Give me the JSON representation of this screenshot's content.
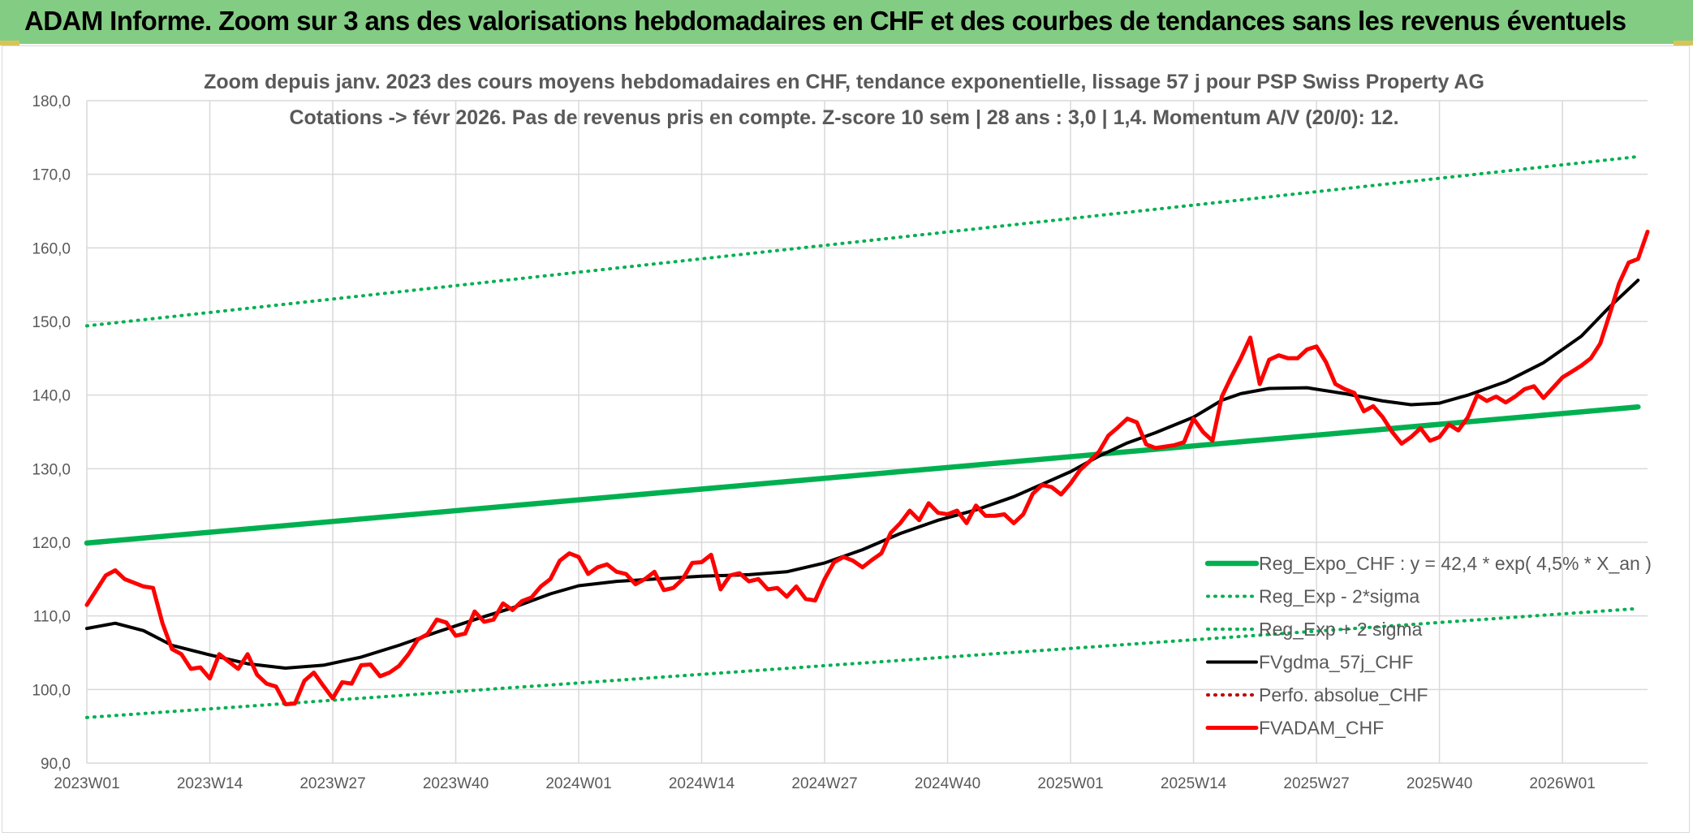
{
  "header": {
    "title": "ADAM Informe. Zoom sur 3 ans des valorisations hebdomadaires en CHF et des courbes de tendances sans les revenus éventuels",
    "background": "#83cc83"
  },
  "chart_data": {
    "type": "line",
    "title_line1": "Zoom depuis janv. 2023 des cours moyens hebdomadaires en CHF, tendance exponentielle, lissage 57 j pour PSP Swiss Property AG",
    "title_line2": "Cotations -> févr 2026. Pas de revenus pris en compte. Z-score 10 sem | 28 ans : 3,0 | 1,4. Momentum A/V (20/0): 12.",
    "ylim": [
      90,
      180
    ],
    "yticks": [
      "90,0",
      "100,0",
      "110,0",
      "120,0",
      "130,0",
      "140,0",
      "150,0",
      "160,0",
      "170,0",
      "180,0"
    ],
    "xticks": [
      {
        "label": "2023W01",
        "index": 0
      },
      {
        "label": "2023W14",
        "index": 13
      },
      {
        "label": "2023W27",
        "index": 26
      },
      {
        "label": "2023W40",
        "index": 39
      },
      {
        "label": "2024W01",
        "index": 52
      },
      {
        "label": "2024W14",
        "index": 65
      },
      {
        "label": "2024W27",
        "index": 78
      },
      {
        "label": "2024W40",
        "index": 91
      },
      {
        "label": "2025W01",
        "index": 104
      },
      {
        "label": "2025W14",
        "index": 117
      },
      {
        "label": "2025W27",
        "index": 130
      },
      {
        "label": "2025W40",
        "index": 143
      },
      {
        "label": "2026W01",
        "index": 156
      }
    ],
    "n_points": 165,
    "grid": true,
    "legend_position": "bottom-right",
    "series": [
      {
        "name": "Reg_Expo_CHF : y = 42,4 * exp( 4,5% *  X_an )",
        "color": "#00b050",
        "style": "solid-thick",
        "points": [
          [
            0,
            119.9
          ],
          [
            164,
            138.4
          ]
        ]
      },
      {
        "name": "Reg_Exp - 2*sigma",
        "color": "#00b050",
        "style": "dotted",
        "points": [
          [
            0,
            96.2
          ],
          [
            164,
            111.0
          ]
        ]
      },
      {
        "name": "Reg_Exp + 2 sigma",
        "color": "#00b050",
        "style": "dotted",
        "points": [
          [
            0,
            149.4
          ],
          [
            164,
            172.4
          ]
        ]
      },
      {
        "name": "FVgdma_57j_CHF",
        "color": "#000000",
        "style": "solid",
        "points": [
          [
            0,
            108.3
          ],
          [
            3,
            109.0
          ],
          [
            6,
            108.0
          ],
          [
            9,
            106.0
          ],
          [
            13,
            104.7
          ],
          [
            17,
            103.5
          ],
          [
            21,
            102.9
          ],
          [
            25,
            103.3
          ],
          [
            29,
            104.4
          ],
          [
            33,
            106.0
          ],
          [
            37,
            107.8
          ],
          [
            41,
            109.5
          ],
          [
            45,
            111.1
          ],
          [
            49,
            113.0
          ],
          [
            52,
            114.1
          ],
          [
            56,
            114.7
          ],
          [
            60,
            115.0
          ],
          [
            65,
            115.4
          ],
          [
            70,
            115.6
          ],
          [
            74,
            116.0
          ],
          [
            78,
            117.2
          ],
          [
            82,
            119.0
          ],
          [
            86,
            121.2
          ],
          [
            90,
            123.0
          ],
          [
            94,
            124.4
          ],
          [
            98,
            126.2
          ],
          [
            101,
            127.9
          ],
          [
            104,
            129.6
          ],
          [
            107,
            131.7
          ],
          [
            110,
            133.5
          ],
          [
            113,
            134.9
          ],
          [
            117,
            137.0
          ],
          [
            120,
            139.3
          ],
          [
            122,
            140.2
          ],
          [
            125,
            140.9
          ],
          [
            129,
            141.0
          ],
          [
            133,
            140.2
          ],
          [
            137,
            139.2
          ],
          [
            140,
            138.7
          ],
          [
            143,
            138.9
          ],
          [
            146,
            140.0
          ],
          [
            150,
            141.8
          ],
          [
            154,
            144.4
          ],
          [
            158,
            148.0
          ],
          [
            161,
            152.0
          ],
          [
            164,
            155.6
          ]
        ]
      },
      {
        "name": "Perfo. absolue_CHF",
        "color": "#c00000",
        "style": "dotted",
        "points": []
      },
      {
        "name": "FVADAM_CHF",
        "color": "#ff0000",
        "style": "solid-thick",
        "points": [
          [
            0,
            111.5
          ],
          [
            2,
            115.5
          ],
          [
            3,
            116.2
          ],
          [
            4,
            115.0
          ],
          [
            6,
            114.0
          ],
          [
            7,
            113.8
          ],
          [
            8,
            109.0
          ],
          [
            9,
            105.5
          ],
          [
            10,
            104.8
          ],
          [
            11,
            102.8
          ],
          [
            12,
            103.0
          ],
          [
            13,
            101.5
          ],
          [
            14,
            104.8
          ],
          [
            15,
            103.8
          ],
          [
            16,
            102.8
          ],
          [
            17,
            104.8
          ],
          [
            18,
            102.0
          ],
          [
            19,
            100.8
          ],
          [
            20,
            100.4
          ],
          [
            21,
            98.0
          ],
          [
            22,
            98.1
          ],
          [
            23,
            101.2
          ],
          [
            24,
            102.3
          ],
          [
            25,
            100.5
          ],
          [
            26,
            98.8
          ],
          [
            27,
            101.0
          ],
          [
            28,
            100.8
          ],
          [
            29,
            103.3
          ],
          [
            30,
            103.4
          ],
          [
            31,
            101.8
          ],
          [
            32,
            102.3
          ],
          [
            33,
            103.2
          ],
          [
            34,
            104.8
          ],
          [
            35,
            106.8
          ],
          [
            36,
            107.5
          ],
          [
            37,
            109.5
          ],
          [
            38,
            109.1
          ],
          [
            39,
            107.3
          ],
          [
            40,
            107.6
          ],
          [
            41,
            110.6
          ],
          [
            42,
            109.2
          ],
          [
            43,
            109.5
          ],
          [
            44,
            111.7
          ],
          [
            45,
            110.8
          ],
          [
            46,
            112.0
          ],
          [
            47,
            112.5
          ],
          [
            48,
            114.0
          ],
          [
            49,
            115.0
          ],
          [
            50,
            117.5
          ],
          [
            51,
            118.5
          ],
          [
            52,
            118.0
          ],
          [
            53,
            115.7
          ],
          [
            54,
            116.6
          ],
          [
            55,
            117.0
          ],
          [
            56,
            116.0
          ],
          [
            57,
            115.7
          ],
          [
            58,
            114.3
          ],
          [
            59,
            115.0
          ],
          [
            60,
            116.0
          ],
          [
            61,
            113.5
          ],
          [
            62,
            113.8
          ],
          [
            63,
            115.0
          ],
          [
            64,
            117.2
          ],
          [
            65,
            117.3
          ],
          [
            66,
            118.3
          ],
          [
            67,
            113.6
          ],
          [
            68,
            115.5
          ],
          [
            69,
            115.8
          ],
          [
            70,
            114.7
          ],
          [
            71,
            115.0
          ],
          [
            72,
            113.6
          ],
          [
            73,
            113.8
          ],
          [
            74,
            112.6
          ],
          [
            75,
            114.0
          ],
          [
            76,
            112.3
          ],
          [
            77,
            112.1
          ],
          [
            78,
            115.0
          ],
          [
            79,
            117.3
          ],
          [
            80,
            118.0
          ],
          [
            81,
            117.5
          ],
          [
            82,
            116.6
          ],
          [
            83,
            117.6
          ],
          [
            84,
            118.5
          ],
          [
            85,
            121.3
          ],
          [
            86,
            122.6
          ],
          [
            87,
            124.3
          ],
          [
            88,
            123.0
          ],
          [
            89,
            125.3
          ],
          [
            90,
            124.0
          ],
          [
            91,
            123.8
          ],
          [
            92,
            124.3
          ],
          [
            93,
            122.6
          ],
          [
            94,
            125.0
          ],
          [
            95,
            123.6
          ],
          [
            96,
            123.6
          ],
          [
            97,
            123.8
          ],
          [
            98,
            122.6
          ],
          [
            99,
            123.8
          ],
          [
            100,
            126.6
          ],
          [
            101,
            127.8
          ],
          [
            102,
            127.5
          ],
          [
            103,
            126.5
          ],
          [
            104,
            128.0
          ],
          [
            105,
            129.8
          ],
          [
            106,
            131.0
          ],
          [
            107,
            132.3
          ],
          [
            108,
            134.5
          ],
          [
            109,
            135.6
          ],
          [
            110,
            136.8
          ],
          [
            111,
            136.3
          ],
          [
            112,
            133.3
          ],
          [
            113,
            132.8
          ],
          [
            114,
            133.0
          ],
          [
            115,
            133.2
          ],
          [
            116,
            133.6
          ],
          [
            117,
            136.8
          ],
          [
            118,
            135.0
          ],
          [
            119,
            133.8
          ],
          [
            120,
            139.8
          ],
          [
            121,
            142.5
          ],
          [
            122,
            145.0
          ],
          [
            123,
            147.8
          ],
          [
            124,
            141.5
          ],
          [
            125,
            144.8
          ],
          [
            126,
            145.4
          ],
          [
            127,
            145.0
          ],
          [
            128,
            145.0
          ],
          [
            129,
            146.2
          ],
          [
            130,
            146.6
          ],
          [
            131,
            144.5
          ],
          [
            132,
            141.5
          ],
          [
            133,
            140.8
          ],
          [
            134,
            140.3
          ],
          [
            135,
            137.8
          ],
          [
            136,
            138.5
          ],
          [
            137,
            137.0
          ],
          [
            138,
            135.0
          ],
          [
            139,
            133.4
          ],
          [
            140,
            134.3
          ],
          [
            141,
            135.5
          ],
          [
            142,
            133.8
          ],
          [
            143,
            134.3
          ],
          [
            144,
            136.0
          ],
          [
            145,
            135.2
          ],
          [
            146,
            137.0
          ],
          [
            147,
            140.0
          ],
          [
            148,
            139.2
          ],
          [
            149,
            139.8
          ],
          [
            150,
            139.0
          ],
          [
            151,
            139.8
          ],
          [
            152,
            140.8
          ],
          [
            153,
            141.2
          ],
          [
            154,
            139.6
          ],
          [
            155,
            141.0
          ],
          [
            156,
            142.4
          ],
          [
            157,
            143.2
          ],
          [
            158,
            144.0
          ],
          [
            159,
            145.0
          ],
          [
            160,
            147.0
          ],
          [
            161,
            151.0
          ],
          [
            162,
            155.2
          ],
          [
            163,
            158.0
          ],
          [
            164,
            158.5
          ],
          [
            165,
            162.2
          ]
        ]
      }
    ]
  }
}
